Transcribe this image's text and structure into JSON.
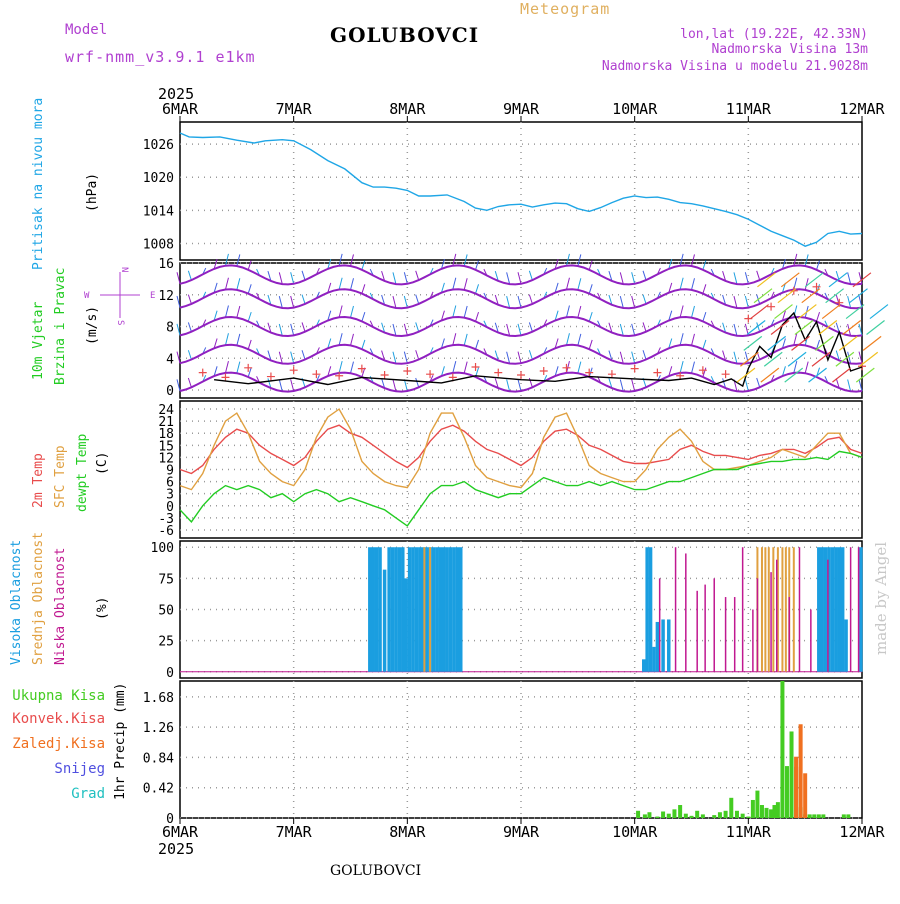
{
  "header": {
    "model_label": "Model",
    "model_name": "wrf-nmm_v3.9.1 e1km",
    "title": "GOLUBOVCI",
    "meteogram": "Meteogram",
    "lonlat": "lon,lat (19.22E, 42.33N)",
    "altitude": "Nadmorska Visina 13m",
    "model_altitude": "Nadmorska Visina u modelu 21.9028m",
    "year": "2025",
    "footer_title": "GOLUBOVCI",
    "watermark": "made by Angel"
  },
  "colors": {
    "pressure": "#1fa6e6",
    "temp2m": "#e84c4c",
    "sfc_temp": "#e0a040",
    "dewpoint": "#22cc22",
    "cloud_high": "#1a9ee0",
    "cloud_mid": "#e0a040",
    "cloud_low": "#c01890",
    "precip_total": "#44cc22",
    "precip_conv": "#e84c4c",
    "precip_frz": "#f07020",
    "snow": "#5050e0",
    "hail": "#20c0c0",
    "wind_barb": "#9020c0",
    "wind_speed": "#000000",
    "wind_gust_marker": "#e84c4c"
  },
  "time_axis": {
    "labels": [
      "6MAR",
      "7MAR",
      "8MAR",
      "9MAR",
      "10MAR",
      "11MAR",
      "12MAR"
    ]
  },
  "chart_data": [
    {
      "type": "line",
      "panel": "pressure",
      "ylabel_left": "Pritisak na nivou mora",
      "ylabel_unit": "(hPa)",
      "yticks": [
        1008,
        1014,
        1020,
        1026
      ],
      "ylim": [
        1005,
        1030
      ],
      "grid": true,
      "series": [
        {
          "color_key": "pressure",
          "x": [
            0,
            0.08,
            0.2,
            0.35,
            0.5,
            0.65,
            0.75,
            0.9,
            1.0,
            1.15,
            1.3,
            1.45,
            1.6,
            1.7,
            1.8,
            1.9,
            2.0,
            2.1,
            2.2,
            2.35,
            2.5,
            2.6,
            2.7,
            2.8,
            2.9,
            3.0,
            3.1,
            3.2,
            3.3,
            3.4,
            3.5,
            3.6,
            3.7,
            3.8,
            3.9,
            4.0,
            4.1,
            4.2,
            4.3,
            4.4,
            4.5,
            4.6,
            4.7,
            4.8,
            4.9,
            5.0,
            5.1,
            5.2,
            5.3,
            5.4,
            5.5,
            5.6,
            5.7,
            5.8,
            5.9,
            6.0
          ],
          "y": [
            1028,
            1027.3,
            1027.2,
            1027.3,
            1026.7,
            1026.2,
            1026.6,
            1026.8,
            1026.6,
            1025,
            1023,
            1021.5,
            1019,
            1018.2,
            1018.2,
            1018,
            1017.6,
            1016.6,
            1016.6,
            1016.8,
            1015.6,
            1014.4,
            1014,
            1014.7,
            1015,
            1015.1,
            1014.6,
            1015,
            1015.3,
            1015.2,
            1014.3,
            1013.8,
            1014.5,
            1015.4,
            1016.2,
            1016.6,
            1016.3,
            1016.4,
            1016,
            1015.4,
            1015.2,
            1014.8,
            1014.3,
            1013.8,
            1013.2,
            1012.4,
            1011.3,
            1010.2,
            1009.4,
            1008.6,
            1007.5,
            1008.2,
            1009.8,
            1010.2,
            1009.7,
            1009.8
          ]
        }
      ]
    },
    {
      "type": "line",
      "panel": "wind",
      "ylabel_left_1": "10m Vjetar",
      "ylabel_left_2": "Brzina i Pravac",
      "ylabel_unit": "(m/s)",
      "compass": {
        "n": "N",
        "s": "S",
        "w": "W",
        "e": "E"
      },
      "yticks": [
        0,
        4,
        8,
        12,
        16
      ],
      "ylim": [
        -1,
        16
      ],
      "grid": true,
      "barb_levels": [
        1,
        4.5,
        8,
        11.5,
        14.5
      ],
      "series": [
        {
          "name": "speed",
          "color_key": "wind_speed",
          "x": [
            0.3,
            0.6,
            1.0,
            1.3,
            1.6,
            2.0,
            2.3,
            2.6,
            3.0,
            3.3,
            3.6,
            4.0,
            4.3,
            4.5,
            4.7,
            4.85,
            4.95,
            5.0,
            5.1,
            5.2,
            5.3,
            5.4,
            5.5,
            5.6,
            5.7,
            5.8,
            5.9,
            6.0
          ],
          "y": [
            1.3,
            0.8,
            1.5,
            0.7,
            1.6,
            1.2,
            0.9,
            1.8,
            1.3,
            1.1,
            1.7,
            1.4,
            1.2,
            1.5,
            0.7,
            1.4,
            0.5,
            2.7,
            5.5,
            4.1,
            8.2,
            9.7,
            6.3,
            8.6,
            3.8,
            7.3,
            2.4,
            2.9
          ]
        },
        {
          "name": "gust",
          "color_key": "wind_gust_marker",
          "x": [
            0.2,
            0.4,
            0.6,
            0.8,
            1.0,
            1.2,
            1.4,
            1.6,
            1.8,
            2.0,
            2.2,
            2.4,
            2.6,
            2.8,
            3.0,
            3.2,
            3.4,
            3.6,
            3.8,
            4.0,
            4.2,
            4.4,
            4.6,
            4.8,
            5.0,
            5.2,
            5.4,
            5.6,
            5.8,
            6.0
          ],
          "y": [
            2.2,
            1.6,
            2.8,
            1.7,
            2.5,
            2.0,
            1.8,
            2.7,
            1.9,
            2.4,
            2.0,
            1.6,
            2.9,
            2.2,
            1.9,
            2.4,
            2.8,
            2.2,
            2.0,
            2.7,
            2.2,
            1.8,
            2.5,
            2.0,
            9.0,
            10.5,
            12.5,
            13.0,
            11.0,
            3.0
          ]
        }
      ]
    },
    {
      "type": "line",
      "panel": "temperature",
      "ylabel_1": "2m Temp",
      "ylabel_2": "SFC Temp",
      "ylabel_3": "dewpt Temp",
      "ylabel_unit": "(C)",
      "yticks": [
        -6,
        -3,
        0,
        3,
        6,
        9,
        12,
        15,
        18,
        21,
        24
      ],
      "ylim": [
        -8,
        26
      ],
      "grid": true,
      "series": [
        {
          "name": "2m Temp",
          "color_key": "temp2m",
          "x": [
            0,
            0.1,
            0.2,
            0.3,
            0.4,
            0.5,
            0.6,
            0.7,
            0.8,
            0.9,
            1.0,
            1.1,
            1.2,
            1.3,
            1.4,
            1.5,
            1.6,
            1.7,
            1.8,
            1.9,
            2.0,
            2.1,
            2.2,
            2.3,
            2.4,
            2.5,
            2.6,
            2.7,
            2.8,
            2.9,
            3.0,
            3.1,
            3.2,
            3.3,
            3.4,
            3.5,
            3.6,
            3.7,
            3.8,
            3.9,
            4.0,
            4.1,
            4.2,
            4.3,
            4.4,
            4.5,
            4.6,
            4.7,
            4.8,
            4.9,
            5.0,
            5.1,
            5.2,
            5.3,
            5.4,
            5.5,
            5.6,
            5.7,
            5.8,
            5.9,
            6.0
          ],
          "y": [
            9,
            8,
            10,
            14,
            17,
            19,
            18,
            15,
            13,
            11.5,
            10,
            12,
            16,
            19,
            20,
            18,
            17,
            15,
            13,
            11,
            9.5,
            12,
            16,
            19,
            20,
            18.5,
            16,
            14,
            13,
            11.5,
            10,
            12,
            16,
            18.5,
            19,
            17.5,
            15,
            14,
            12.5,
            11,
            10.5,
            10.5,
            11,
            11.5,
            14,
            15,
            13.5,
            12.5,
            12.5,
            12,
            11.5,
            12.5,
            13,
            14,
            14,
            13,
            14.5,
            16.5,
            17,
            14,
            13
          ]
        },
        {
          "name": "SFC Temp",
          "color_key": "sfc_temp",
          "x": [
            0,
            0.1,
            0.2,
            0.3,
            0.4,
            0.5,
            0.6,
            0.7,
            0.8,
            0.9,
            1.0,
            1.1,
            1.2,
            1.3,
            1.4,
            1.5,
            1.6,
            1.7,
            1.8,
            1.9,
            2.0,
            2.1,
            2.2,
            2.3,
            2.4,
            2.5,
            2.6,
            2.7,
            2.8,
            2.9,
            3.0,
            3.1,
            3.2,
            3.3,
            3.4,
            3.5,
            3.6,
            3.7,
            3.8,
            3.9,
            4.0,
            4.1,
            4.2,
            4.3,
            4.4,
            4.5,
            4.6,
            4.7,
            4.8,
            4.9,
            5.0,
            5.1,
            5.2,
            5.3,
            5.4,
            5.5,
            5.6,
            5.7,
            5.8,
            5.9,
            6.0
          ],
          "y": [
            5,
            4,
            8,
            15,
            21,
            23,
            18,
            11,
            8,
            6,
            5,
            9,
            17,
            22,
            24,
            19,
            11,
            8,
            6,
            5,
            4.5,
            9,
            18,
            23,
            23,
            17,
            10,
            7,
            6,
            5,
            4.5,
            8,
            17,
            22,
            23,
            17,
            10,
            8,
            7,
            6,
            6,
            9,
            14,
            17,
            19,
            16,
            11,
            9,
            9,
            9.5,
            10,
            11,
            12,
            14,
            13,
            12,
            15,
            18,
            18,
            13,
            12
          ]
        },
        {
          "name": "dewpt Temp",
          "color_key": "dewpoint",
          "x": [
            0,
            0.1,
            0.2,
            0.3,
            0.4,
            0.5,
            0.6,
            0.7,
            0.8,
            0.9,
            1.0,
            1.1,
            1.2,
            1.3,
            1.4,
            1.5,
            1.6,
            1.7,
            1.8,
            1.9,
            2.0,
            2.1,
            2.2,
            2.3,
            2.4,
            2.5,
            2.6,
            2.7,
            2.8,
            2.9,
            3.0,
            3.1,
            3.2,
            3.3,
            3.4,
            3.5,
            3.6,
            3.7,
            3.8,
            3.9,
            4.0,
            4.1,
            4.2,
            4.3,
            4.4,
            4.5,
            4.6,
            4.7,
            4.8,
            4.9,
            5.0,
            5.1,
            5.2,
            5.3,
            5.4,
            5.5,
            5.6,
            5.7,
            5.8,
            5.9,
            6.0
          ],
          "y": [
            -1,
            -4,
            0,
            3,
            5,
            4,
            5,
            4,
            2,
            3,
            1,
            3,
            4,
            3,
            1,
            2,
            1,
            0,
            -1,
            -3,
            -5,
            -1,
            3,
            5,
            5,
            6,
            4,
            3,
            2,
            3,
            3,
            5,
            7,
            6,
            5,
            5,
            6,
            5,
            6,
            5,
            4,
            4,
            5,
            6,
            6,
            7,
            8,
            9,
            9,
            9,
            10,
            10.5,
            11,
            11,
            11.5,
            11.5,
            12,
            11.5,
            13.5,
            13,
            12
          ]
        }
      ]
    },
    {
      "type": "bar",
      "panel": "clouds",
      "ylabel_1": "Visoka Oblacnost",
      "ylabel_2": "Srednja Oblacnost",
      "ylabel_3": "Niska Oblacnost",
      "ylabel_unit": "(%)",
      "yticks": [
        0,
        25,
        50,
        75,
        100
      ],
      "ylim": [
        -5,
        105
      ],
      "grid": true,
      "series": [
        {
          "name": "high",
          "color_key": "cloud_high",
          "x": [
            1.67,
            1.7,
            1.73,
            1.76,
            1.8,
            1.84,
            1.87,
            1.9,
            1.93,
            1.96,
            1.99,
            2.02,
            2.05,
            2.08,
            2.11,
            2.14,
            2.17,
            2.2,
            2.23,
            2.26,
            2.29,
            2.32,
            2.35,
            2.38,
            2.41,
            2.44,
            2.47,
            4.08,
            4.11,
            4.14,
            4.17,
            4.2,
            4.25,
            4.3,
            5.62,
            5.65,
            5.68,
            5.71,
            5.74,
            5.77,
            5.8,
            5.83,
            5.86,
            5.99
          ],
          "y": [
            100,
            100,
            100,
            100,
            82,
            100,
            100,
            100,
            100,
            100,
            75,
            100,
            100,
            100,
            100,
            100,
            100,
            100,
            100,
            100,
            100,
            100,
            100,
            100,
            100,
            100,
            100,
            10,
            100,
            100,
            20,
            40,
            42,
            42,
            100,
            100,
            100,
            100,
            100,
            100,
            100,
            100,
            42,
            100
          ]
        },
        {
          "name": "mid",
          "color_key": "cloud_mid",
          "x": [
            2.15,
            2.2,
            5.08,
            5.12,
            5.15,
            5.18,
            5.22,
            5.26,
            5.3,
            5.33,
            5.36,
            5.4
          ],
          "y": [
            100,
            100,
            100,
            100,
            100,
            100,
            100,
            100,
            100,
            100,
            100,
            100
          ]
        },
        {
          "name": "low",
          "color_key": "cloud_low",
          "x": [
            4.22,
            4.36,
            4.45,
            4.55,
            4.62,
            4.7,
            4.8,
            4.88,
            4.95,
            5.04,
            5.08,
            5.2,
            5.25,
            5.36,
            5.45,
            5.55,
            5.7,
            5.9,
            5.97
          ],
          "y": [
            75,
            100,
            95,
            65,
            70,
            75,
            60,
            60,
            100,
            50,
            75,
            80,
            90,
            60,
            100,
            50,
            90,
            100,
            100
          ]
        }
      ]
    },
    {
      "type": "bar",
      "panel": "precip",
      "legend": [
        "Ukupna Kisa",
        "Konvek.Kisa",
        "Zaledj.Kisa",
        "Snijeg",
        "Grad"
      ],
      "ylabel": "1hr Precip (mm)",
      "yticks": [
        0,
        0.42,
        0.84,
        1.26,
        1.68
      ],
      "ylim": [
        0,
        1.9
      ],
      "grid": true,
      "series": [
        {
          "name": "Ukupna Kisa",
          "color_key": "precip_total",
          "x": [
            4.03,
            4.09,
            4.13,
            4.2,
            4.25,
            4.3,
            4.35,
            4.4,
            4.45,
            4.5,
            4.55,
            4.6,
            4.7,
            4.75,
            4.8,
            4.85,
            4.9,
            4.95,
            5.0,
            5.04,
            5.08,
            5.12,
            5.16,
            5.2,
            5.23,
            5.26,
            5.3,
            5.34,
            5.38,
            5.42,
            5.46,
            5.5,
            5.54,
            5.58,
            5.62,
            5.66,
            5.84,
            5.88
          ],
          "y": [
            0.1,
            0.05,
            0.08,
            0.02,
            0.09,
            0.06,
            0.12,
            0.18,
            0.06,
            0.03,
            0.1,
            0.05,
            0.04,
            0.08,
            0.1,
            0.28,
            0.1,
            0.06,
            0.02,
            0.25,
            0.38,
            0.18,
            0.14,
            0.12,
            0.18,
            0.22,
            1.9,
            0.72,
            1.2,
            0.71,
            0.15,
            0.05,
            0.05,
            0.05,
            0.05,
            0.05,
            0.05,
            0.05
          ]
        },
        {
          "name": "Zaledj.Kisa",
          "color_key": "precip_frz",
          "x": [
            5.42,
            5.46,
            5.5
          ],
          "y": [
            0.85,
            1.3,
            0.62
          ]
        }
      ]
    }
  ]
}
